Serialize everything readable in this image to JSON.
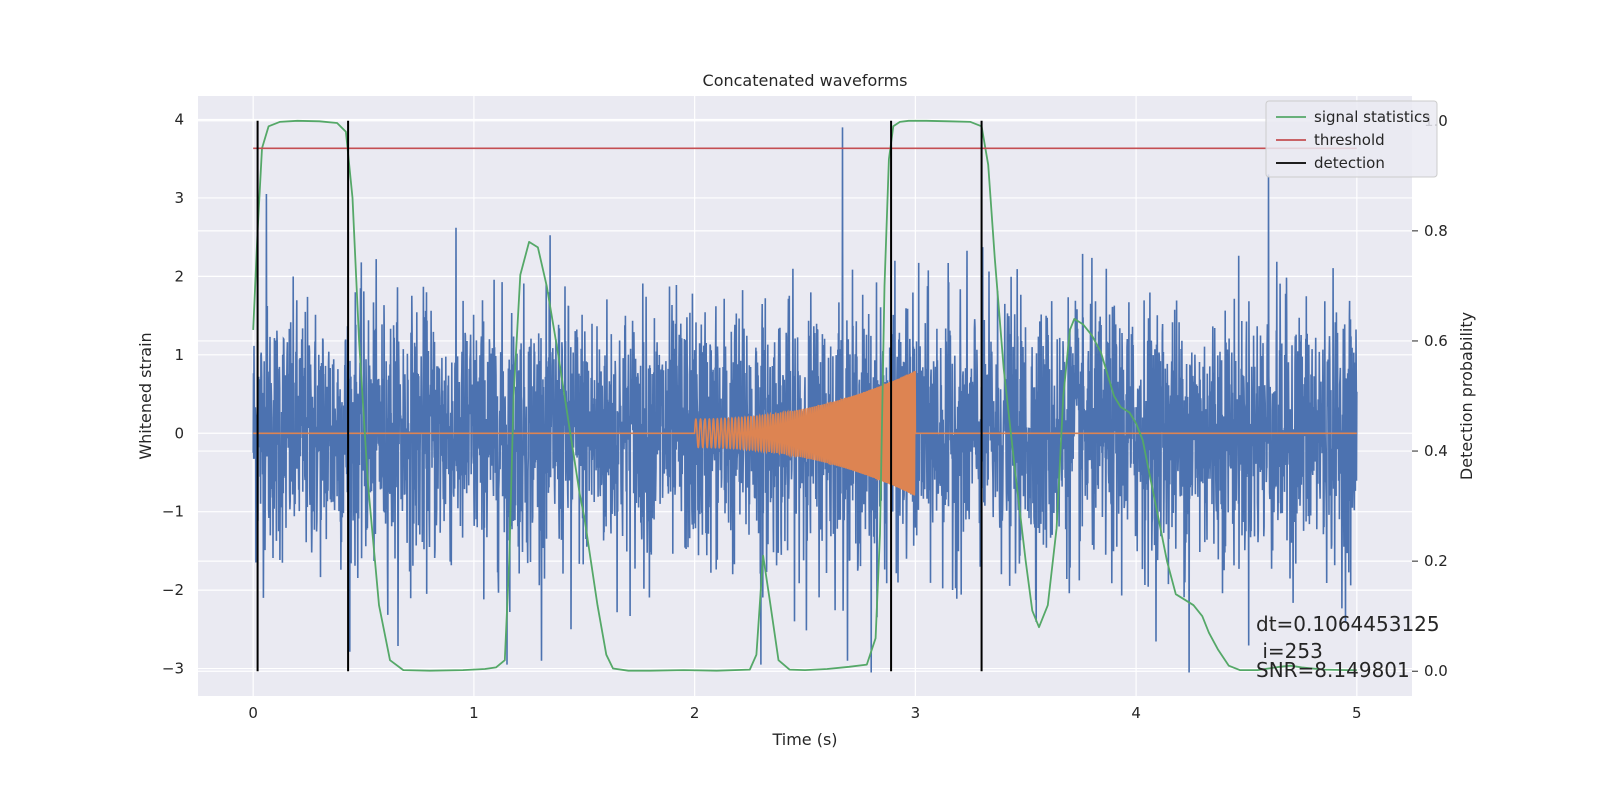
{
  "chart_data": {
    "type": "line",
    "title": "Concatenated waveforms",
    "xlabel": "Time (s)",
    "ylabel": "Whitened strain",
    "y2label": "Detection probability",
    "xlim": [
      -0.25,
      5.25
    ],
    "ylim": [
      -3.35,
      4.3
    ],
    "y2lim": [
      -0.045,
      1.045
    ],
    "x_ticks": [
      0,
      1,
      2,
      3,
      4,
      5
    ],
    "x_tick_labels": [
      "0",
      "1",
      "2",
      "3",
      "4",
      "5"
    ],
    "y_ticks": [
      -3,
      -2,
      -1,
      0,
      1,
      2,
      3,
      4
    ],
    "y_tick_labels": [
      "−3",
      "−2",
      "−1",
      "0",
      "1",
      "2",
      "3",
      "4"
    ],
    "y2_ticks": [
      0,
      0.2,
      0.4,
      0.6,
      0.8,
      1.0
    ],
    "y2_tick_labels": [
      "0.0",
      "0.2",
      "0.4",
      "0.6",
      "0.8",
      "1.0"
    ],
    "grid": true,
    "legend_position": "top-right",
    "colors": {
      "background": "#eaeaf2",
      "grid": "#ffffff",
      "noise": "#4c72b0",
      "injection": "#dd8452",
      "signal_statistics": "#55a868",
      "threshold": "#c44e52",
      "detection": "#000000"
    },
    "noise": {
      "x_range": [
        0,
        5
      ],
      "std": 0.8,
      "peaks": [
        {
          "x": 0.06,
          "y": 3.05
        },
        {
          "x": 1.15,
          "y": -2.95
        },
        {
          "x": 1.44,
          "y": -2.5
        },
        {
          "x": 2.3,
          "y": -2.95
        },
        {
          "x": 2.67,
          "y": 3.9
        },
        {
          "x": 2.8,
          "y": -3.05
        },
        {
          "x": 4.24,
          "y": -3.05
        },
        {
          "x": 4.6,
          "y": 3.3
        }
      ]
    },
    "injection": {
      "x_start": 2.0,
      "x_end": 3.0,
      "amplitude_start": 0.18,
      "amplitude_end": 0.8,
      "freq_start": 45,
      "freq_end": 160
    },
    "series": [
      {
        "name": "signal statistics",
        "axis": "right",
        "x": [
          0,
          0.02,
          0.04,
          0.07,
          0.12,
          0.2,
          0.3,
          0.38,
          0.42,
          0.45,
          0.48,
          0.52,
          0.57,
          0.62,
          0.68,
          0.8,
          0.95,
          1.05,
          1.1,
          1.14,
          1.16,
          1.18,
          1.21,
          1.25,
          1.29,
          1.33,
          1.38,
          1.43,
          1.48,
          1.5,
          1.53,
          1.56,
          1.6,
          1.63,
          1.7,
          1.8,
          1.95,
          2.1,
          2.25,
          2.28,
          2.31,
          2.34,
          2.38,
          2.43,
          2.5,
          2.6,
          2.7,
          2.78,
          2.82,
          2.84,
          2.86,
          2.88,
          2.9,
          2.93,
          2.97,
          3.05,
          3.15,
          3.25,
          3.3,
          3.33,
          3.36,
          3.4,
          3.45,
          3.5,
          3.53,
          3.56,
          3.6,
          3.64,
          3.67,
          3.7,
          3.72,
          3.76,
          3.8,
          3.84,
          3.87,
          3.9,
          3.93,
          3.97,
          4.0,
          4.03,
          4.06,
          4.1,
          4.14,
          4.18,
          4.22,
          4.26,
          4.3,
          4.33,
          4.37,
          4.42,
          4.47,
          4.5,
          4.55,
          4.6,
          4.65,
          4.7,
          4.75,
          4.85,
          4.95,
          5.0
        ],
        "values": [
          0.62,
          0.8,
          0.95,
          0.99,
          0.998,
          1.0,
          0.999,
          0.996,
          0.98,
          0.86,
          0.6,
          0.34,
          0.12,
          0.02,
          0.002,
          0.001,
          0.002,
          0.004,
          0.007,
          0.02,
          0.2,
          0.5,
          0.72,
          0.78,
          0.77,
          0.7,
          0.58,
          0.45,
          0.32,
          0.28,
          0.2,
          0.12,
          0.03,
          0.005,
          0.001,
          0.001,
          0.002,
          0.001,
          0.003,
          0.03,
          0.21,
          0.13,
          0.02,
          0.003,
          0.002,
          0.004,
          0.008,
          0.012,
          0.06,
          0.25,
          0.7,
          0.93,
          0.99,
          0.998,
          1.0,
          1.0,
          0.999,
          0.998,
          0.99,
          0.92,
          0.75,
          0.55,
          0.37,
          0.2,
          0.11,
          0.08,
          0.12,
          0.26,
          0.5,
          0.62,
          0.64,
          0.63,
          0.61,
          0.58,
          0.54,
          0.5,
          0.48,
          0.47,
          0.45,
          0.42,
          0.36,
          0.28,
          0.2,
          0.14,
          0.13,
          0.12,
          0.1,
          0.07,
          0.04,
          0.01,
          0.002,
          0.002,
          0.002,
          0.005,
          0.008,
          0.01,
          0.007,
          0.003,
          0.002,
          0.002
        ]
      },
      {
        "name": "threshold",
        "axis": "right",
        "x": [
          0,
          5
        ],
        "values": [
          0.95,
          0.95
        ]
      },
      {
        "name": "detection",
        "axis": "right",
        "vertical_lines": [
          0.02,
          0.43,
          2.89,
          3.3
        ],
        "y_range": [
          0,
          1.0
        ]
      }
    ],
    "annotation": {
      "x": 4.5,
      "lines": [
        "dt=0.1064453125",
        " i=253",
        "SNR=8.149801"
      ]
    }
  }
}
